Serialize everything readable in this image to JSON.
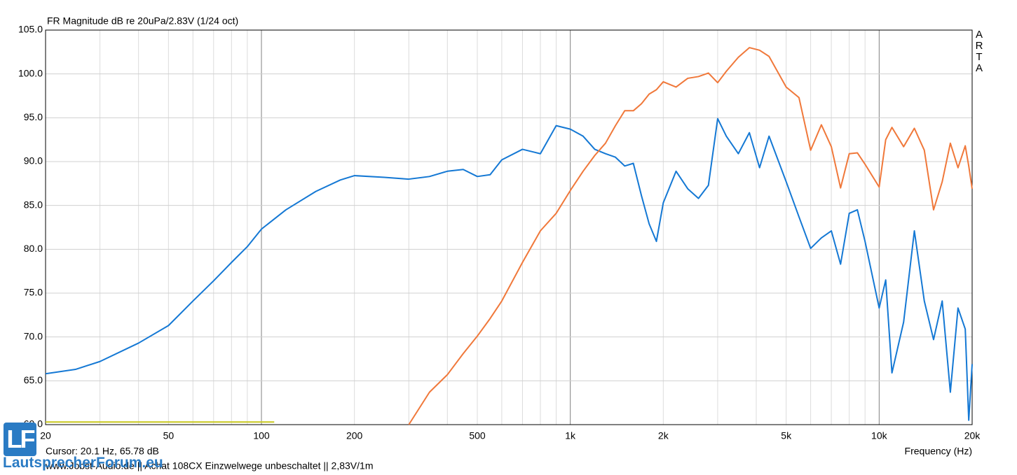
{
  "chart_data": {
    "type": "line",
    "title": "FR Magnitude dB re 20uPa/2.83V (1/24 oct)",
    "watermark": "ARTA",
    "cursor_text": "Cursor: 20.1 Hz, 65.78 dB",
    "x_label": "Frequency (Hz)",
    "footer": "www.Jobst-Audio.de || Achat 108CX  Einzwelwege unbeschaltet ||  2,83V/1m",
    "logo": {
      "mark": "LF",
      "text": "LautsprecherForum.eu"
    },
    "xscale": "log",
    "grid": true,
    "xlim": [
      20,
      20000
    ],
    "ylim": [
      60,
      105
    ],
    "xticks": [
      20,
      50,
      100,
      200,
      500,
      {
        "value": 1000,
        "label": "1k"
      },
      {
        "value": 2000,
        "label": "2k"
      },
      {
        "value": 5000,
        "label": "5k"
      },
      {
        "value": 10000,
        "label": "10k"
      },
      {
        "value": 20000,
        "label": "20k"
      }
    ],
    "x_minor_ticks": [
      30,
      40,
      60,
      70,
      80,
      90,
      300,
      400,
      600,
      700,
      800,
      900,
      3000,
      4000,
      6000,
      7000,
      8000,
      9000
    ],
    "yticks": [
      {
        "value": 60,
        "label": "60.0"
      },
      {
        "value": 65,
        "label": "65.0"
      },
      {
        "value": 70,
        "label": "70.0"
      },
      {
        "value": 75,
        "label": "75.0"
      },
      {
        "value": 80,
        "label": "80.0"
      },
      {
        "value": 85,
        "label": "85.0"
      },
      {
        "value": 90,
        "label": "90.0"
      },
      {
        "value": 95,
        "label": "95.0"
      },
      {
        "value": 100,
        "label": "100.0"
      },
      {
        "value": 105,
        "label": "105.0"
      }
    ],
    "series": [
      {
        "color": "#1478d4",
        "x": [
          20,
          25,
          30,
          40,
          50,
          60,
          70,
          80,
          90,
          100,
          120,
          150,
          180,
          200,
          250,
          300,
          350,
          400,
          450,
          500,
          550,
          600,
          700,
          800,
          900,
          1000,
          1100,
          1200,
          1300,
          1400,
          1500,
          1600,
          1700,
          1800,
          1900,
          2000,
          2200,
          2400,
          2600,
          2800,
          3000,
          3200,
          3500,
          3800,
          4100,
          4400,
          5000,
          5500,
          6000,
          6500,
          7000,
          7500,
          8000,
          8500,
          9000,
          10000,
          10500,
          11000,
          12000,
          13000,
          14000,
          15000,
          16000,
          17000,
          18000,
          19000,
          19500,
          20000
        ],
        "values": [
          65.8,
          66.3,
          67.2,
          69.3,
          71.3,
          74.1,
          76.4,
          78.5,
          80.3,
          82.3,
          84.5,
          86.6,
          87.9,
          88.4,
          88.2,
          88.0,
          88.3,
          88.9,
          89.1,
          88.3,
          88.5,
          90.2,
          91.4,
          90.9,
          94.1,
          93.7,
          92.9,
          91.4,
          90.9,
          90.5,
          89.5,
          89.8,
          86.1,
          82.9,
          80.9,
          85.3,
          88.9,
          86.9,
          85.8,
          87.3,
          94.9,
          92.9,
          90.9,
          93.3,
          89.3,
          92.9,
          87.7,
          83.7,
          80.1,
          81.3,
          82.1,
          78.3,
          84.1,
          84.5,
          80.9,
          73.3,
          76.5,
          65.9,
          71.7,
          82.1,
          74.1,
          69.7,
          74.1,
          63.7,
          73.3,
          70.9,
          60.5,
          66.9
        ]
      },
      {
        "color": "#f0783a",
        "x": [
          300,
          350,
          400,
          450,
          500,
          550,
          600,
          700,
          800,
          900,
          1000,
          1100,
          1200,
          1300,
          1400,
          1500,
          1600,
          1700,
          1800,
          1900,
          2000,
          2200,
          2400,
          2600,
          2800,
          3000,
          3200,
          3500,
          3800,
          4100,
          4400,
          5000,
          5500,
          6000,
          6500,
          7000,
          7500,
          8000,
          8500,
          9000,
          10000,
          10500,
          11000,
          12000,
          13000,
          14000,
          15000,
          16000,
          17000,
          18000,
          19000,
          19500,
          20000
        ],
        "values": [
          60.0,
          63.7,
          65.7,
          68.1,
          70.1,
          72.1,
          74.1,
          78.5,
          82.1,
          84.1,
          86.7,
          88.9,
          90.7,
          92.1,
          94.1,
          95.8,
          95.8,
          96.6,
          97.7,
          98.2,
          99.1,
          98.5,
          99.5,
          99.7,
          100.1,
          99.0,
          100.3,
          101.9,
          103.0,
          102.7,
          102.0,
          98.5,
          97.3,
          91.3,
          94.2,
          91.7,
          87.0,
          90.9,
          91.0,
          89.7,
          87.1,
          92.5,
          93.9,
          91.7,
          93.8,
          91.3,
          84.5,
          87.7,
          92.1,
          89.3,
          91.8,
          89.5,
          86.9
        ]
      },
      {
        "color": "#c8c81e",
        "x": [
          20,
          110
        ],
        "values": [
          60.3,
          60.3
        ]
      }
    ]
  }
}
